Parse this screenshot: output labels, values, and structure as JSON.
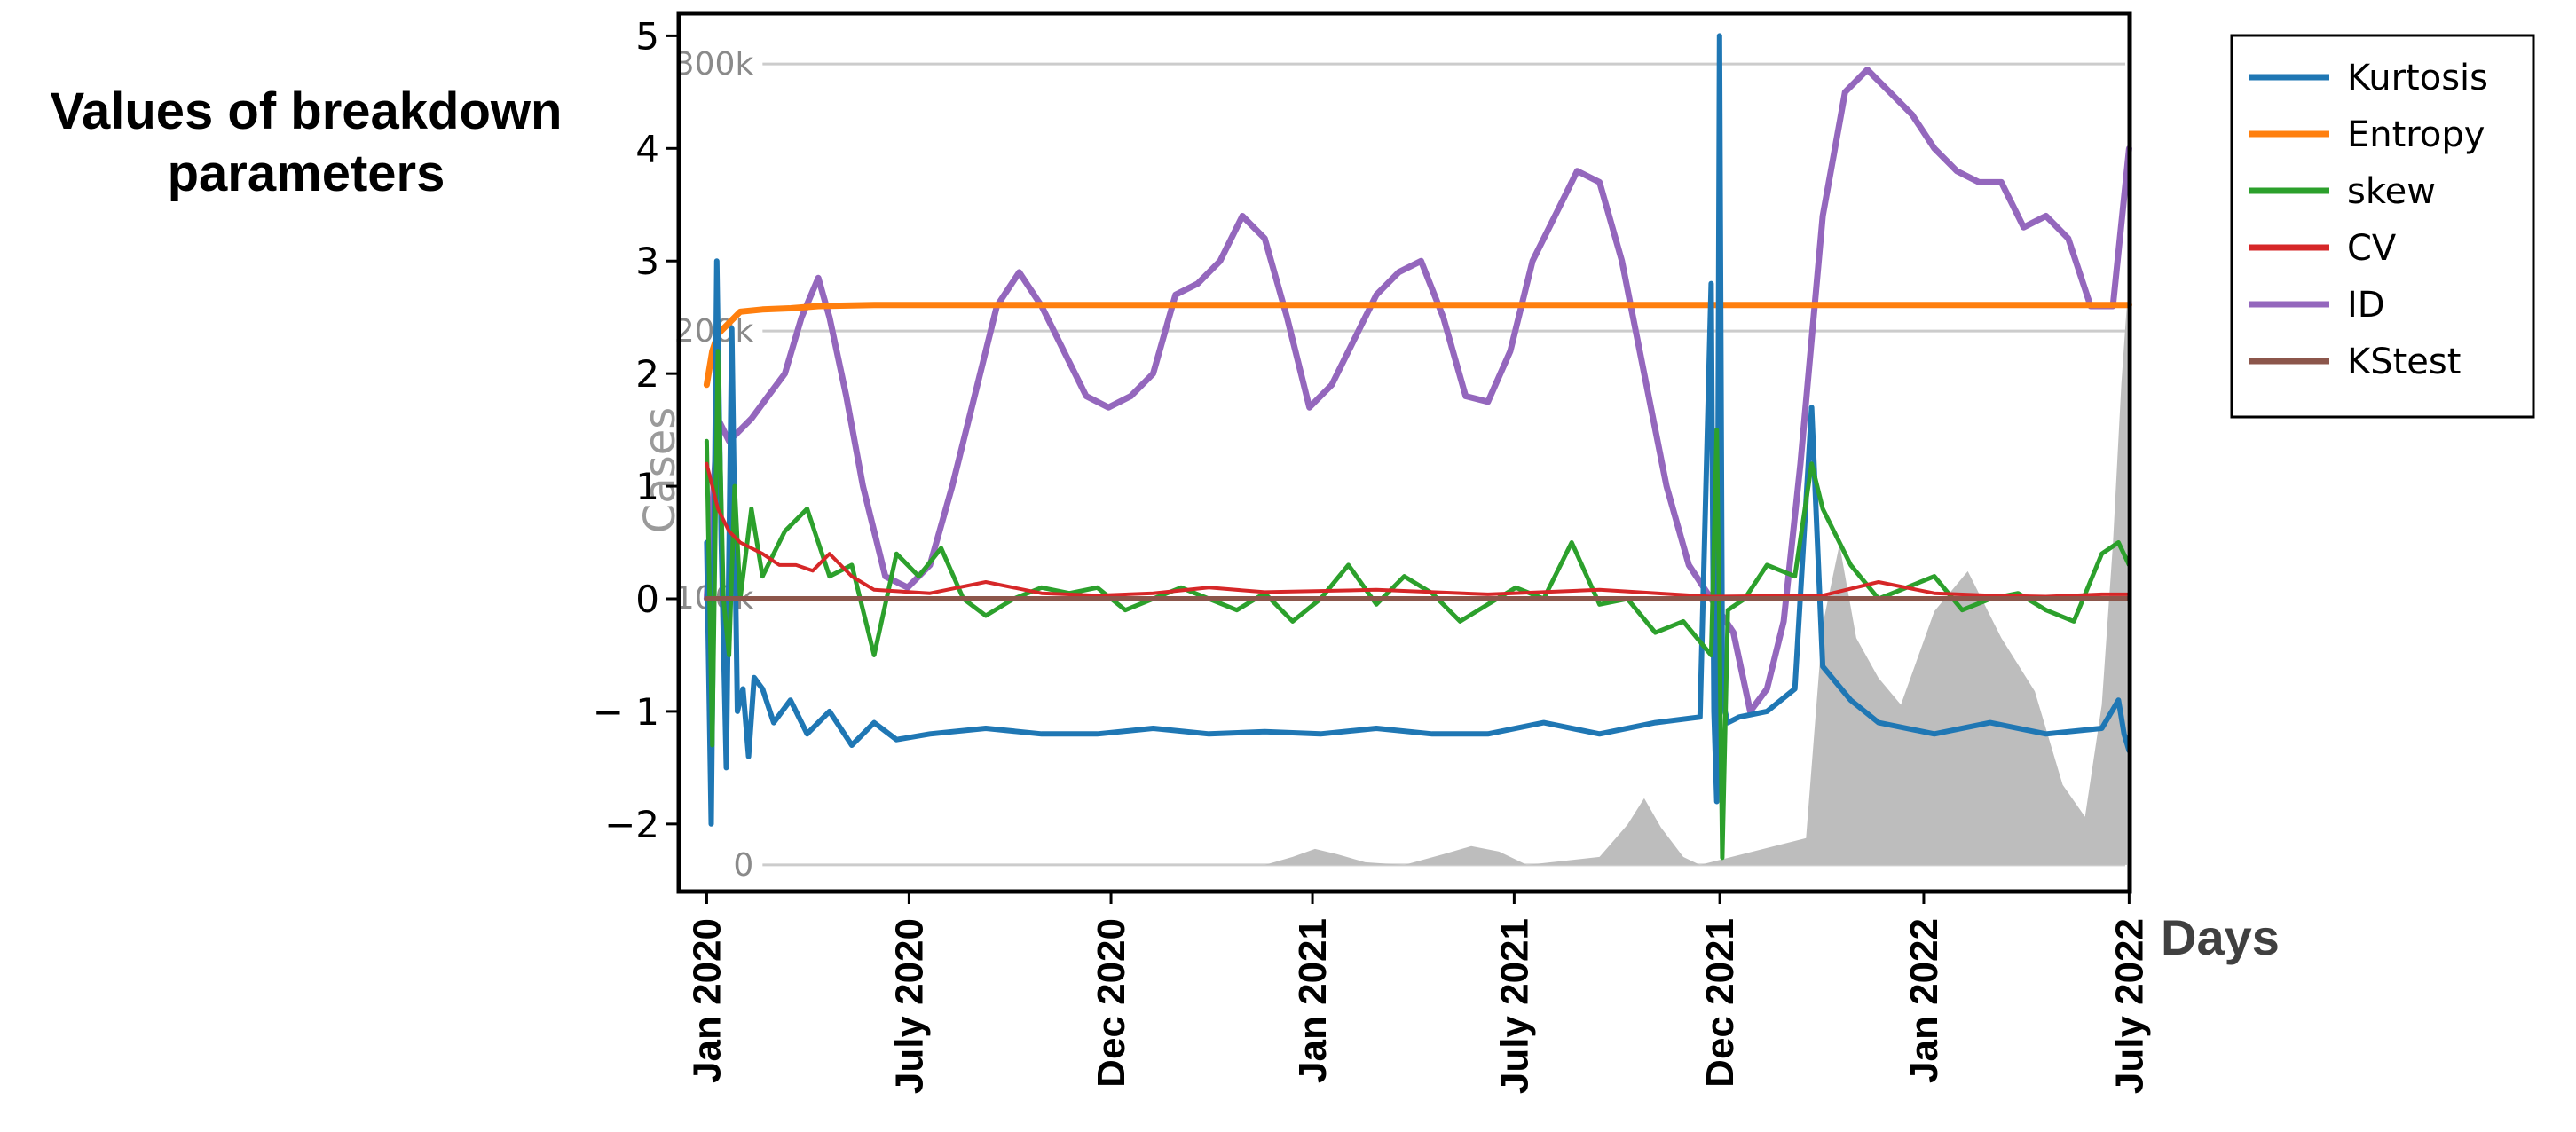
{
  "chart_data": {
    "type": "line",
    "ylabel": "Values of breakdown parameters",
    "ylabel_lines": [
      "Values of breakdown",
      "parameters"
    ],
    "xlabel": "Days",
    "ylim": [
      -2.6,
      5.2
    ],
    "yticks": [
      {
        "value": 5,
        "label": "5"
      },
      {
        "value": 4,
        "label": "4"
      },
      {
        "value": 3,
        "label": "3"
      },
      {
        "value": 2,
        "label": "2"
      },
      {
        "value": 1,
        "label": "1"
      },
      {
        "value": 0,
        "label": "0"
      },
      {
        "value": -1,
        "label": "− 1"
      },
      {
        "value": -2,
        "label": "−2"
      }
    ],
    "xlim": [
      -0.05,
      2.55
    ],
    "xticks": [
      {
        "value": 0,
        "label": "Jan 2020"
      },
      {
        "value": 0.3625,
        "label": "July 2020"
      },
      {
        "value": 0.7245,
        "label": "Dec 2020"
      },
      {
        "value": 1.0855,
        "label": "Jan 2021"
      },
      {
        "value": 1.447,
        "label": "July 2021"
      },
      {
        "value": 1.8155,
        "label": "Dec 2021"
      },
      {
        "value": 2.181,
        "label": "Jan 2022"
      },
      {
        "value": 2.549,
        "label": "July 2022"
      }
    ],
    "background": {
      "ylabel": "Cases",
      "ylim": [
        -10000,
        319000
      ],
      "ticks": [
        {
          "value": 0,
          "label": "0"
        },
        {
          "value": 100000,
          "label": "100k"
        },
        {
          "value": 200000,
          "label": "200k"
        },
        {
          "value": 300000,
          "label": "300k"
        }
      ],
      "bars_x": [
        1.0,
        1.05,
        1.09,
        1.13,
        1.18,
        1.25,
        1.32,
        1.37,
        1.42,
        1.47,
        1.6,
        1.65,
        1.68,
        1.71,
        1.75,
        1.78,
        1.97,
        2.0,
        2.03,
        2.06,
        2.1,
        2.14,
        2.2,
        2.26,
        2.32,
        2.38,
        2.43,
        2.47,
        2.5,
        2.52,
        2.535,
        2.545
      ],
      "bars_y": [
        0,
        3000,
        6000,
        4000,
        1000,
        0,
        4000,
        7000,
        5000,
        0,
        3000,
        15000,
        25000,
        14000,
        3000,
        0,
        10000,
        90000,
        120000,
        85000,
        70000,
        60000,
        95000,
        110000,
        85000,
        65000,
        30000,
        18000,
        60000,
        120000,
        180000,
        210000
      ]
    },
    "series": [
      {
        "name": "Kurtosis",
        "color": "#1f77b4",
        "x": [
          0,
          0.008,
          0.018,
          0.026,
          0.035,
          0.045,
          0.055,
          0.065,
          0.075,
          0.085,
          0.1,
          0.12,
          0.15,
          0.18,
          0.22,
          0.26,
          0.3,
          0.34,
          0.4,
          0.5,
          0.6,
          0.7,
          0.8,
          0.9,
          1.0,
          1.1,
          1.2,
          1.3,
          1.4,
          1.5,
          1.6,
          1.7,
          1.78,
          1.8,
          1.805,
          1.81,
          1.815,
          1.82,
          1.825,
          1.83,
          1.85,
          1.9,
          1.95,
          1.98,
          2.0,
          2.05,
          2.1,
          2.2,
          2.3,
          2.4,
          2.5,
          2.53,
          2.54,
          2.549
        ],
        "y": [
          0.5,
          -2.0,
          3.0,
          0.5,
          -1.5,
          2.4,
          -1.0,
          -0.8,
          -1.4,
          -0.7,
          -0.8,
          -1.1,
          -0.9,
          -1.2,
          -1.0,
          -1.3,
          -1.1,
          -1.25,
          -1.2,
          -1.15,
          -1.2,
          -1.2,
          -1.15,
          -1.2,
          -1.18,
          -1.2,
          -1.15,
          -1.2,
          -1.2,
          -1.1,
          -1.2,
          -1.1,
          -1.05,
          2.8,
          -1.0,
          -1.8,
          5.0,
          -0.5,
          -1.0,
          -1.1,
          -1.05,
          -1.0,
          -0.8,
          1.7,
          -0.6,
          -0.9,
          -1.1,
          -1.2,
          -1.1,
          -1.2,
          -1.15,
          -0.9,
          -1.2,
          -1.35
        ]
      },
      {
        "name": "Entropy",
        "color": "#ff7f0e",
        "x": [
          0,
          0.01,
          0.02,
          0.04,
          0.06,
          0.1,
          0.15,
          0.2,
          0.3,
          0.5,
          1.0,
          1.5,
          2.0,
          2.549
        ],
        "y": [
          1.9,
          2.2,
          2.35,
          2.45,
          2.55,
          2.57,
          2.58,
          2.6,
          2.61,
          2.61,
          2.61,
          2.61,
          2.61,
          2.61
        ]
      },
      {
        "name": "skew",
        "color": "#2ca02c",
        "x": [
          0,
          0.01,
          0.02,
          0.03,
          0.04,
          0.05,
          0.06,
          0.08,
          0.1,
          0.14,
          0.18,
          0.22,
          0.26,
          0.3,
          0.34,
          0.38,
          0.42,
          0.46,
          0.5,
          0.55,
          0.6,
          0.65,
          0.7,
          0.75,
          0.8,
          0.85,
          0.9,
          0.95,
          1.0,
          1.05,
          1.1,
          1.15,
          1.2,
          1.25,
          1.3,
          1.35,
          1.4,
          1.45,
          1.5,
          1.55,
          1.6,
          1.65,
          1.7,
          1.75,
          1.8,
          1.81,
          1.815,
          1.82,
          1.83,
          1.86,
          1.9,
          1.95,
          1.98,
          2.0,
          2.05,
          2.1,
          2.15,
          2.2,
          2.25,
          2.3,
          2.35,
          2.4,
          2.45,
          2.5,
          2.53,
          2.549
        ],
        "y": [
          1.4,
          -1.3,
          2.2,
          0.0,
          -0.5,
          1.0,
          0.0,
          0.8,
          0.2,
          0.6,
          0.8,
          0.2,
          0.3,
          -0.5,
          0.4,
          0.2,
          0.45,
          0.0,
          -0.15,
          0.0,
          0.1,
          0.05,
          0.1,
          -0.1,
          0.0,
          0.1,
          0.0,
          -0.1,
          0.05,
          -0.2,
          0.0,
          0.3,
          -0.05,
          0.2,
          0.05,
          -0.2,
          -0.05,
          0.1,
          0.0,
          0.5,
          -0.05,
          0.0,
          -0.3,
          -0.2,
          -0.5,
          1.5,
          -0.3,
          -2.3,
          -0.1,
          0.0,
          0.3,
          0.2,
          1.2,
          0.8,
          0.3,
          0.0,
          0.1,
          0.2,
          -0.1,
          0.0,
          0.05,
          -0.1,
          -0.2,
          0.4,
          0.5,
          0.3
        ]
      },
      {
        "name": "CV",
        "color": "#d62728",
        "x": [
          0,
          0.01,
          0.02,
          0.04,
          0.06,
          0.08,
          0.1,
          0.13,
          0.16,
          0.19,
          0.22,
          0.26,
          0.3,
          0.4,
          0.5,
          0.6,
          0.7,
          0.8,
          0.9,
          1.0,
          1.2,
          1.4,
          1.6,
          1.8,
          2.0,
          2.1,
          2.2,
          2.3,
          2.4,
          2.5,
          2.549
        ],
        "y": [
          1.2,
          1.0,
          0.8,
          0.6,
          0.5,
          0.45,
          0.4,
          0.3,
          0.3,
          0.25,
          0.4,
          0.2,
          0.08,
          0.05,
          0.15,
          0.05,
          0.03,
          0.05,
          0.1,
          0.06,
          0.08,
          0.04,
          0.08,
          0.02,
          0.03,
          0.15,
          0.05,
          0.03,
          0.02,
          0.04,
          0.04
        ]
      },
      {
        "name": "ID",
        "color": "#9467bd",
        "x": [
          0,
          0.02,
          0.04,
          0.06,
          0.08,
          0.11,
          0.14,
          0.17,
          0.2,
          0.22,
          0.25,
          0.28,
          0.32,
          0.36,
          0.4,
          0.44,
          0.48,
          0.52,
          0.56,
          0.6,
          0.64,
          0.68,
          0.72,
          0.76,
          0.8,
          0.84,
          0.88,
          0.92,
          0.96,
          1.0,
          1.04,
          1.08,
          1.12,
          1.16,
          1.2,
          1.24,
          1.28,
          1.32,
          1.36,
          1.4,
          1.44,
          1.48,
          1.52,
          1.56,
          1.6,
          1.64,
          1.68,
          1.72,
          1.76,
          1.8,
          1.84,
          1.87,
          1.9,
          1.93,
          1.96,
          2.0,
          2.04,
          2.08,
          2.12,
          2.16,
          2.2,
          2.24,
          2.28,
          2.32,
          2.36,
          2.4,
          2.44,
          2.48,
          2.52,
          2.549
        ],
        "y": [
          0.0,
          1.6,
          1.4,
          1.5,
          1.6,
          1.8,
          2.0,
          2.5,
          2.85,
          2.5,
          1.8,
          1.0,
          0.2,
          0.1,
          0.3,
          1.0,
          1.8,
          2.6,
          2.9,
          2.6,
          2.2,
          1.8,
          1.7,
          1.8,
          2.0,
          2.7,
          2.8,
          3.0,
          3.4,
          3.2,
          2.5,
          1.7,
          1.9,
          2.3,
          2.7,
          2.9,
          3.0,
          2.5,
          1.8,
          1.75,
          2.2,
          3.0,
          3.4,
          3.8,
          3.7,
          3.0,
          2.0,
          1.0,
          0.3,
          0.0,
          -0.3,
          -1.0,
          -0.8,
          -0.2,
          1.2,
          3.4,
          4.5,
          4.7,
          4.5,
          4.3,
          4.0,
          3.8,
          3.7,
          3.7,
          3.3,
          3.4,
          3.2,
          2.6,
          2.6,
          4.0
        ]
      },
      {
        "name": "KStest",
        "color": "#8c564b",
        "x": [
          0,
          2.549
        ],
        "y": [
          0.0,
          0.0
        ]
      }
    ]
  }
}
